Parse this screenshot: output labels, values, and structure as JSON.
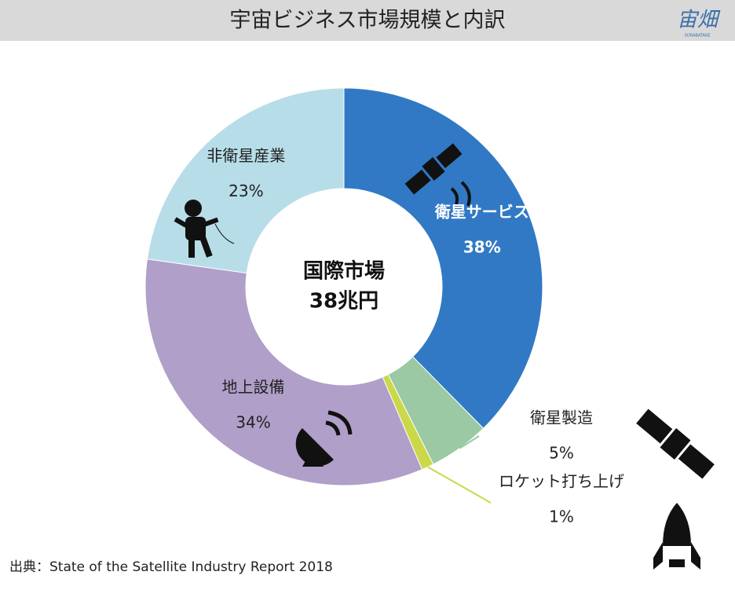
{
  "chart_data": {
    "type": "pie",
    "title": "宇宙ビジネス市場規模と内訳",
    "logo": "宙畑",
    "logo_sub": "SORABATAKE",
    "center_label": [
      "国際市場",
      "38兆円"
    ],
    "categories": [
      "衛星サービス",
      "衛星製造",
      "ロケット打ち上げ",
      "地上設備",
      "非衛星産業"
    ],
    "values": [
      38,
      5,
      1,
      34,
      23
    ],
    "value_labels": [
      "38%",
      "5%",
      "1%",
      "34%",
      "23%"
    ],
    "colors": [
      "#3179c4",
      "#9ac9a4",
      "#cbd84a",
      "#b09fc9",
      "#b7dde8"
    ],
    "source": "出典：State of the Satellite Industry Report 2018"
  }
}
